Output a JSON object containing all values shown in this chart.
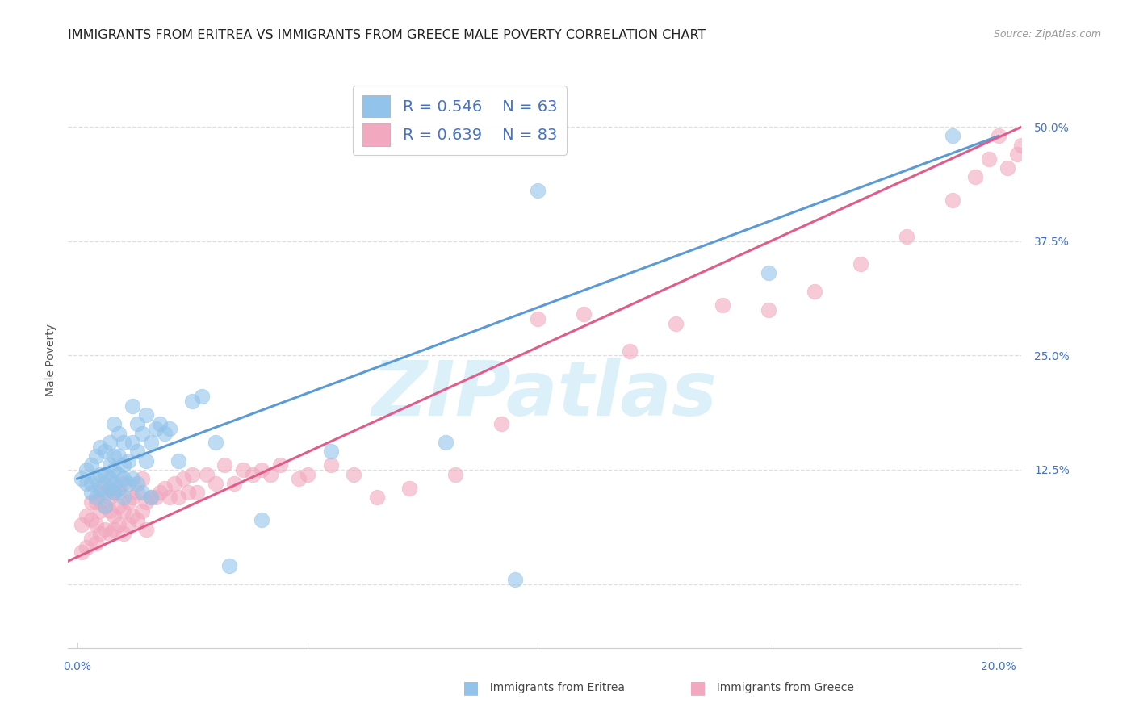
{
  "title": "IMMIGRANTS FROM ERITREA VS IMMIGRANTS FROM GREECE MALE POVERTY CORRELATION CHART",
  "source": "Source: ZipAtlas.com",
  "ylabel_label": "Male Poverty",
  "xlim": [
    -0.002,
    0.205
  ],
  "ylim": [
    -0.07,
    0.56
  ],
  "xticks": [
    0.0,
    0.05,
    0.1,
    0.15,
    0.2
  ],
  "xtick_labels": [
    "0.0%",
    "",
    "",
    "",
    "20.0%"
  ],
  "ytick_positions": [
    0.0,
    0.125,
    0.25,
    0.375,
    0.5
  ],
  "ytick_labels": [
    "",
    "12.5%",
    "25.0%",
    "37.5%",
    "50.0%"
  ],
  "blue_color": "#92C3EA",
  "pink_color": "#F2A8BE",
  "blue_line_color": "#5B9BD5",
  "pink_line_color": "#E05C8A",
  "watermark_text": "ZIPatlas",
  "watermark_color": "#DCF0FA",
  "legend_R1": "R = 0.546",
  "legend_N1": "N = 63",
  "legend_R2": "R = 0.639",
  "legend_N2": "N = 83",
  "legend_label1": "Immigrants from Eritrea",
  "legend_label2": "Immigrants from Greece",
  "blue_scatter_x": [
    0.001,
    0.002,
    0.002,
    0.003,
    0.003,
    0.003,
    0.004,
    0.004,
    0.004,
    0.005,
    0.005,
    0.005,
    0.006,
    0.006,
    0.006,
    0.006,
    0.007,
    0.007,
    0.007,
    0.007,
    0.008,
    0.008,
    0.008,
    0.008,
    0.008,
    0.009,
    0.009,
    0.009,
    0.009,
    0.01,
    0.01,
    0.01,
    0.01,
    0.011,
    0.011,
    0.012,
    0.012,
    0.012,
    0.013,
    0.013,
    0.013,
    0.014,
    0.014,
    0.015,
    0.015,
    0.016,
    0.016,
    0.017,
    0.018,
    0.019,
    0.02,
    0.022,
    0.025,
    0.027,
    0.03,
    0.033,
    0.04,
    0.055,
    0.08,
    0.095,
    0.1,
    0.15,
    0.19
  ],
  "blue_scatter_y": [
    0.115,
    0.11,
    0.125,
    0.1,
    0.11,
    0.13,
    0.095,
    0.115,
    0.14,
    0.105,
    0.12,
    0.15,
    0.085,
    0.1,
    0.12,
    0.145,
    0.105,
    0.115,
    0.13,
    0.155,
    0.1,
    0.11,
    0.125,
    0.14,
    0.175,
    0.105,
    0.12,
    0.14,
    0.165,
    0.095,
    0.115,
    0.13,
    0.155,
    0.11,
    0.135,
    0.115,
    0.155,
    0.195,
    0.11,
    0.145,
    0.175,
    0.1,
    0.165,
    0.135,
    0.185,
    0.095,
    0.155,
    0.17,
    0.175,
    0.165,
    0.17,
    0.135,
    0.2,
    0.205,
    0.155,
    0.02,
    0.07,
    0.145,
    0.155,
    0.005,
    0.43,
    0.34,
    0.49
  ],
  "pink_scatter_x": [
    0.001,
    0.001,
    0.002,
    0.002,
    0.003,
    0.003,
    0.003,
    0.004,
    0.004,
    0.004,
    0.005,
    0.005,
    0.005,
    0.006,
    0.006,
    0.006,
    0.007,
    0.007,
    0.007,
    0.008,
    0.008,
    0.008,
    0.009,
    0.009,
    0.009,
    0.01,
    0.01,
    0.01,
    0.011,
    0.011,
    0.012,
    0.012,
    0.013,
    0.013,
    0.014,
    0.014,
    0.015,
    0.015,
    0.016,
    0.017,
    0.018,
    0.019,
    0.02,
    0.021,
    0.022,
    0.023,
    0.024,
    0.025,
    0.026,
    0.028,
    0.03,
    0.032,
    0.034,
    0.036,
    0.038,
    0.04,
    0.042,
    0.044,
    0.048,
    0.05,
    0.055,
    0.06,
    0.065,
    0.072,
    0.082,
    0.092,
    0.1,
    0.11,
    0.12,
    0.13,
    0.14,
    0.15,
    0.16,
    0.17,
    0.18,
    0.19,
    0.195,
    0.198,
    0.2,
    0.202,
    0.204,
    0.205,
    0.207
  ],
  "pink_scatter_y": [
    0.035,
    0.065,
    0.04,
    0.075,
    0.05,
    0.07,
    0.09,
    0.045,
    0.065,
    0.09,
    0.055,
    0.08,
    0.1,
    0.06,
    0.085,
    0.11,
    0.055,
    0.08,
    0.095,
    0.06,
    0.075,
    0.1,
    0.065,
    0.085,
    0.1,
    0.055,
    0.08,
    0.11,
    0.065,
    0.09,
    0.075,
    0.095,
    0.07,
    0.1,
    0.08,
    0.115,
    0.06,
    0.09,
    0.095,
    0.095,
    0.1,
    0.105,
    0.095,
    0.11,
    0.095,
    0.115,
    0.1,
    0.12,
    0.1,
    0.12,
    0.11,
    0.13,
    0.11,
    0.125,
    0.12,
    0.125,
    0.12,
    0.13,
    0.115,
    0.12,
    0.13,
    0.12,
    0.095,
    0.105,
    0.12,
    0.175,
    0.29,
    0.295,
    0.255,
    0.285,
    0.305,
    0.3,
    0.32,
    0.35,
    0.38,
    0.42,
    0.445,
    0.465,
    0.49,
    0.455,
    0.47,
    0.48,
    0.45
  ],
  "blue_trend_x": [
    0.0,
    0.2
  ],
  "blue_trend_y": [
    0.115,
    0.49
  ],
  "pink_trend_x": [
    -0.002,
    0.205
  ],
  "pink_trend_y": [
    0.025,
    0.5
  ],
  "grid_color": "#DEDEDE",
  "title_color": "#222222",
  "axis_label_color": "#555555",
  "tick_label_color": "#4472C4",
  "background_color": "#FFFFFF",
  "title_fontsize": 11.5,
  "axis_label_fontsize": 10,
  "tick_fontsize": 10,
  "legend_fontsize": 14,
  "source_fontsize": 9
}
